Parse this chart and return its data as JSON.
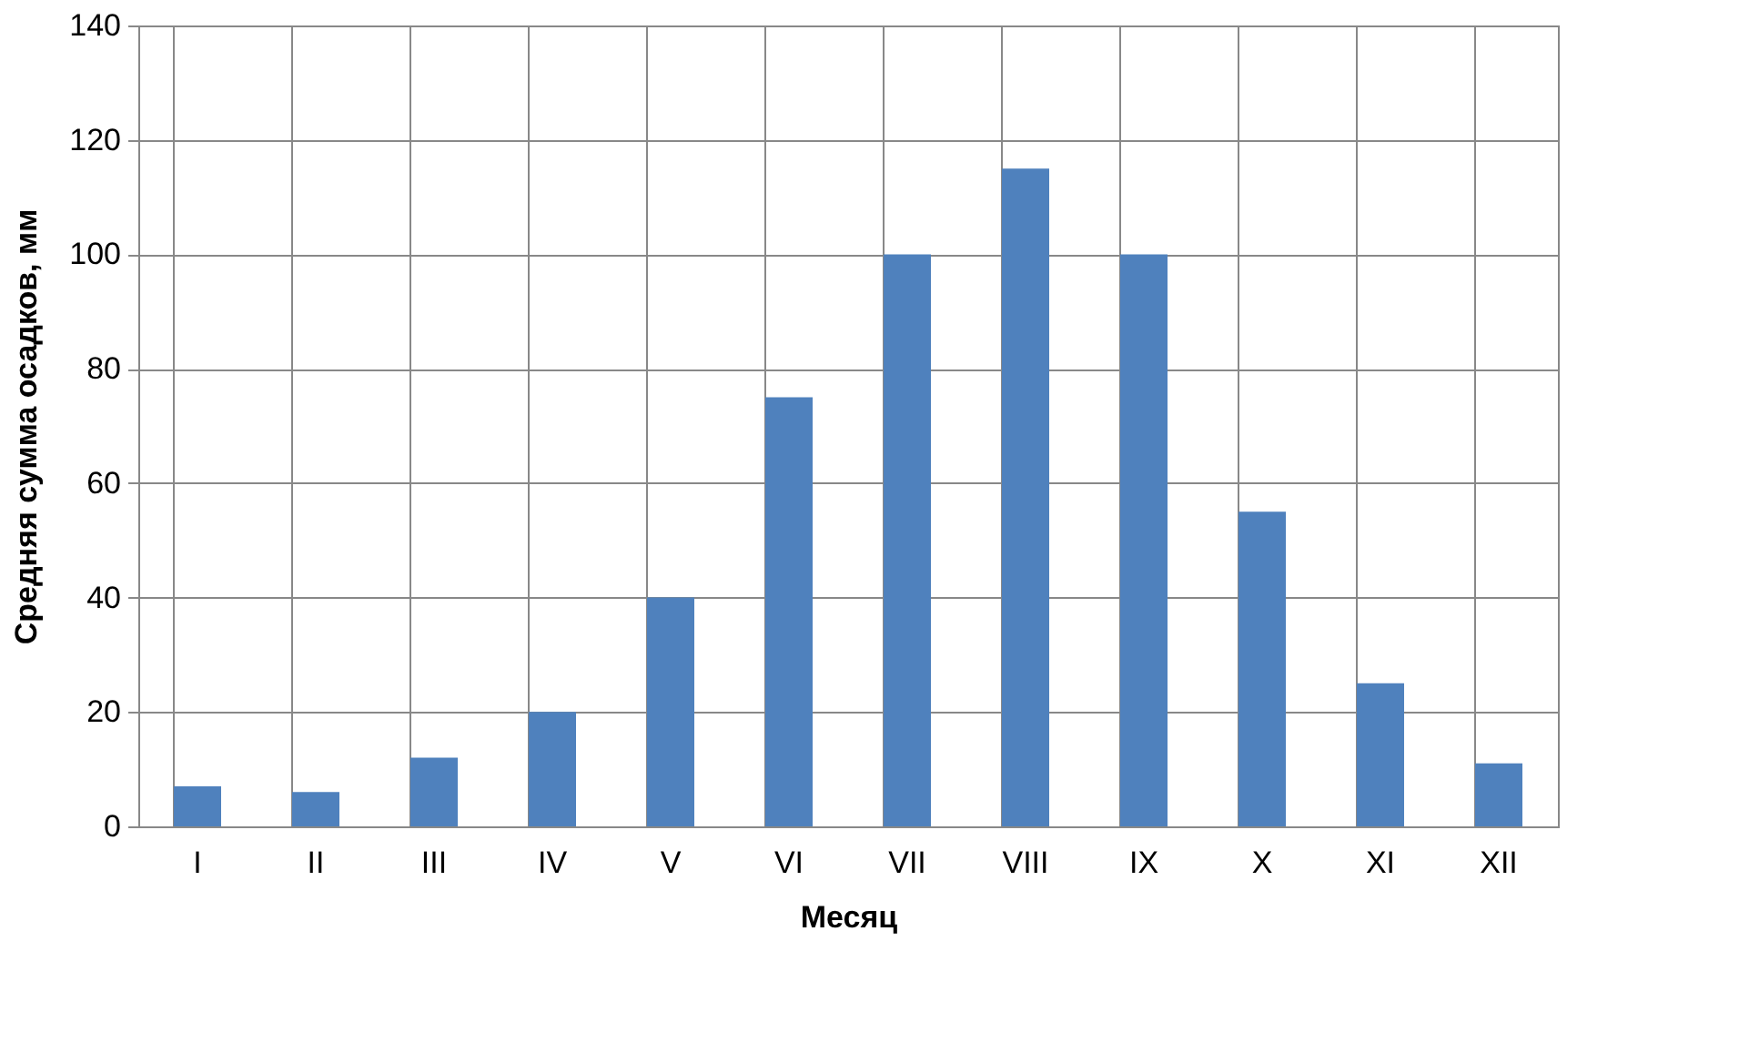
{
  "chart_data": {
    "type": "bar",
    "xlabel": "Месяц",
    "ylabel": "Средняя сумма осадков, мм",
    "categories": [
      "I",
      "II",
      "III",
      "IV",
      "V",
      "VI",
      "VII",
      "VIII",
      "IX",
      "X",
      "XI",
      "XII"
    ],
    "values": [
      7,
      6,
      12,
      20,
      40,
      75,
      100,
      115,
      100,
      55,
      25,
      11
    ],
    "color": "#4f81bd",
    "ylim": [
      0,
      140
    ],
    "yticks": [
      0,
      20,
      40,
      60,
      80,
      100,
      120,
      140
    ],
    "grid": true
  }
}
